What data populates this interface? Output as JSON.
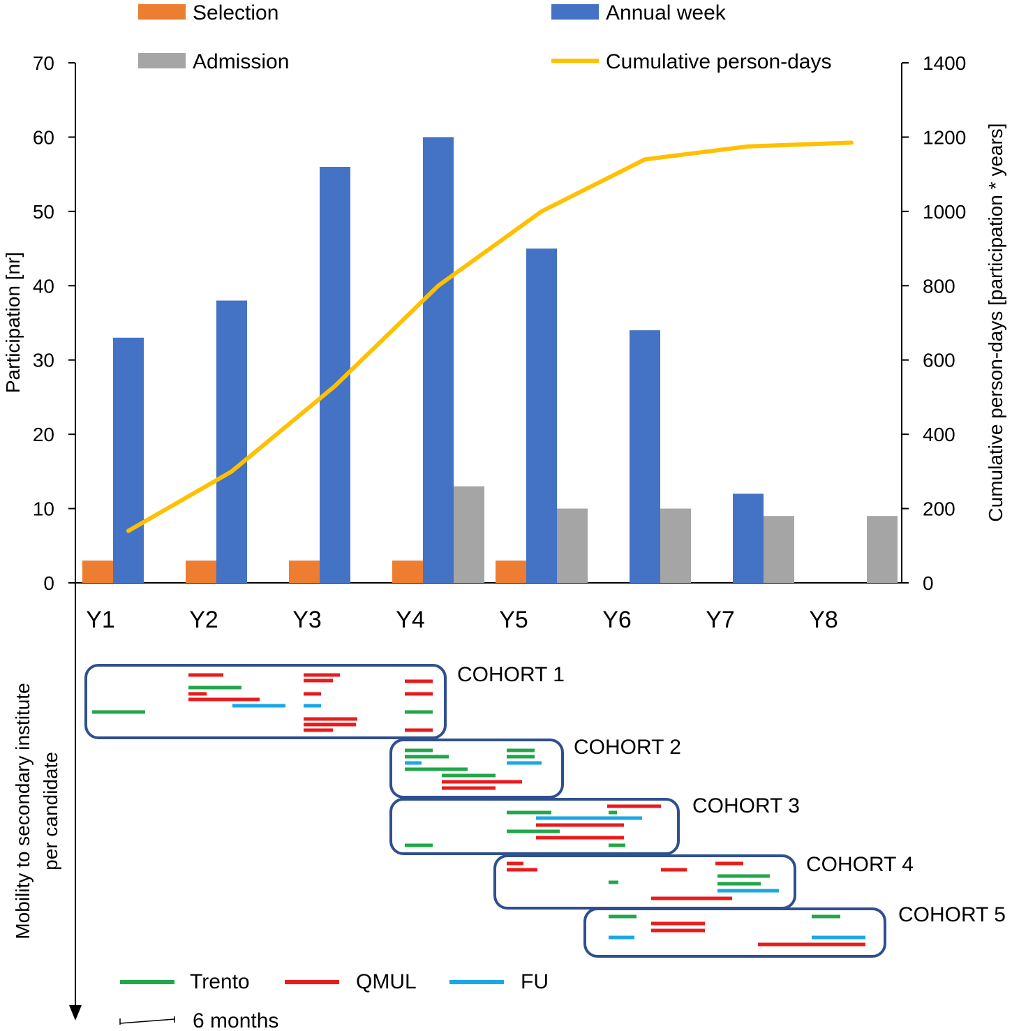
{
  "chart_data": {
    "type": "bar",
    "categories": [
      "Y1",
      "Y2",
      "Y3",
      "Y4",
      "Y5",
      "Y6",
      "Y7",
      "Y8"
    ],
    "series": [
      {
        "name": "Selection",
        "color": "#ED7D31",
        "values": [
          3,
          3,
          3,
          3,
          3,
          0,
          0,
          0
        ]
      },
      {
        "name": "Annual week",
        "color": "#4472C4",
        "values": [
          33,
          38,
          56,
          60,
          45,
          34,
          12,
          0
        ]
      },
      {
        "name": "Admission",
        "color": "#A5A5A5",
        "values": [
          0,
          0,
          0,
          13,
          10,
          10,
          9,
          9
        ]
      }
    ],
    "line_series": {
      "name": "Cumulative person-days",
      "color": "#FFC000",
      "axis": "right",
      "x": [
        "Y1",
        "Y2",
        "Y3",
        "Y4",
        "Y5",
        "Y6",
        "Y7",
        "Y8"
      ],
      "values": [
        140,
        300,
        530,
        800,
        1000,
        1140,
        1175,
        1185
      ]
    },
    "ylabel": "Participation [nr]",
    "ylim": [
      0,
      70
    ],
    "yticks": [
      "0",
      "10",
      "20",
      "30",
      "40",
      "50",
      "60",
      "70"
    ],
    "y2label": "Cumulative person-days [participation * years]",
    "y2lim": [
      0,
      1400
    ],
    "y2ticks": [
      "0",
      "200",
      "400",
      "600",
      "800",
      "1000",
      "1200",
      "1400"
    ],
    "legend_position": "top"
  },
  "mobility": {
    "ylabel_line1": "Mobility to secondary institute",
    "ylabel_line2": "per candidate",
    "cohorts": [
      "COHORT 1",
      "COHORT 2",
      "COHORT 3",
      "COHORT 4",
      "COHORT 5"
    ],
    "legend": [
      {
        "name": "Trento",
        "color": "#22A64A"
      },
      {
        "name": "QMUL",
        "color": "#E81C1C"
      },
      {
        "name": "FU",
        "color": "#1AA7E6"
      }
    ],
    "scale_label": "6 months"
  },
  "colors": {
    "cohort_border": "#2F4F8F"
  }
}
